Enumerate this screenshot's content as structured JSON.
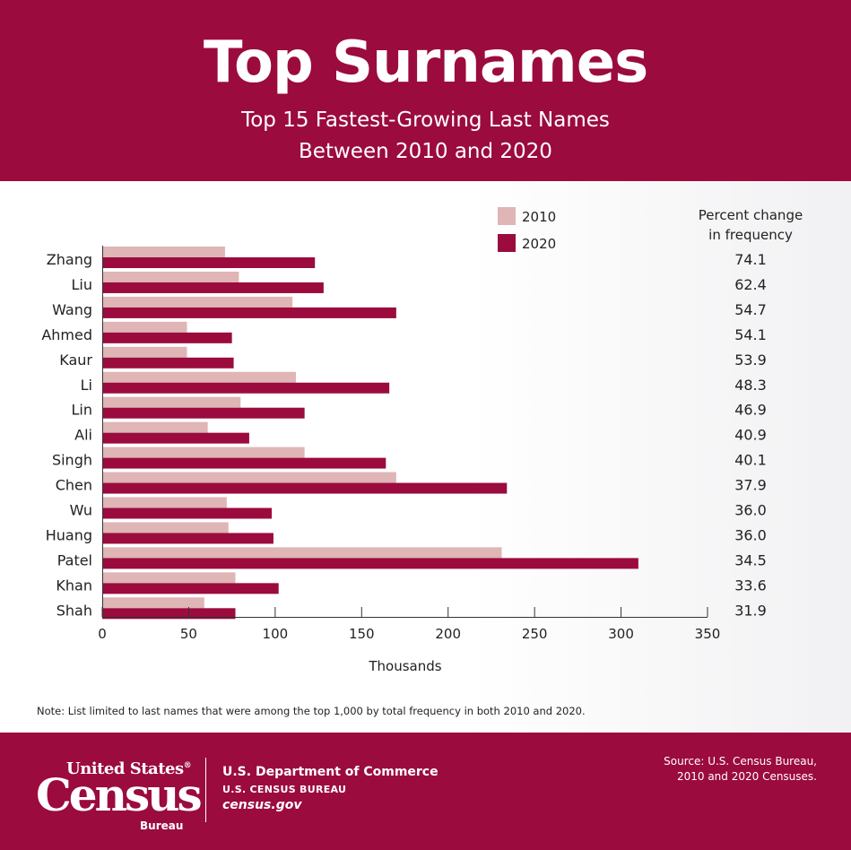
{
  "header": {
    "title": "Top Surnames",
    "subtitle_line1": "Top 15 Fastest-Growing Last Names",
    "subtitle_line2": "Between 2010 and 2020"
  },
  "chart_data": {
    "type": "bar",
    "orientation": "horizontal",
    "categories": [
      "Zhang",
      "Liu",
      "Wang",
      "Ahmed",
      "Kaur",
      "Li",
      "Lin",
      "Ali",
      "Singh",
      "Chen",
      "Wu",
      "Huang",
      "Patel",
      "Khan",
      "Shah"
    ],
    "series": [
      {
        "name": "2010",
        "color": "#dfb5b5",
        "values": [
          71,
          79,
          110,
          49,
          49,
          112,
          80,
          61,
          117,
          170,
          72,
          73,
          231,
          77,
          59
        ]
      },
      {
        "name": "2020",
        "color": "#9b0b3e",
        "values": [
          123,
          128,
          170,
          75,
          76,
          166,
          117,
          85,
          164,
          234,
          98,
          99,
          310,
          102,
          77
        ]
      }
    ],
    "percent_change_header_line1": "Percent change",
    "percent_change_header_line2": "in frequency",
    "percent_change": [
      "74.1",
      "62.4",
      "54.7",
      "54.1",
      "53.9",
      "48.3",
      "46.9",
      "40.9",
      "40.1",
      "37.9",
      "36.0",
      "36.0",
      "34.5",
      "33.6",
      "31.9"
    ],
    "xlabel": "Thousands",
    "xlim": [
      0,
      350
    ],
    "xticks": [
      "0",
      "50",
      "100",
      "150",
      "200",
      "250",
      "300",
      "350"
    ],
    "legend_position": "top-right",
    "grid": false
  },
  "note": "Note: List limited to last names that were among the top 1,000 by total frequency in both 2010 and 2020.",
  "footer": {
    "logo_line1": "United States",
    "logo_reg": "®",
    "logo_main": "Census",
    "logo_bureau": "Bureau",
    "department": "U.S. Department of Commerce",
    "bureau": "U.S. CENSUS BUREAU",
    "website": "census.gov",
    "source_line1": "Source: U.S. Census Bureau,",
    "source_line2": "2010 and 2020 Censuses."
  }
}
